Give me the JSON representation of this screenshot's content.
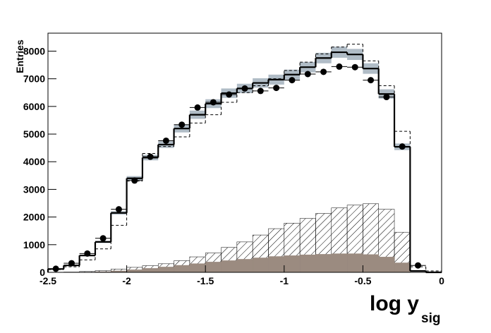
{
  "chart_data": {
    "type": "histogram",
    "y_label": "Entries",
    "x_label": "log y",
    "x_label_sub": "sig",
    "xlim": [
      -2.5,
      0
    ],
    "ylim": [
      0,
      8650
    ],
    "xticks": [
      -2.5,
      -2,
      -1.5,
      -1,
      -0.5,
      0
    ],
    "yticks": [
      0,
      1000,
      2000,
      3000,
      4000,
      5000,
      6000,
      7000,
      8000
    ],
    "bins": [
      -2.5,
      -2.4,
      -2.3,
      -2.2,
      -2.1,
      -2.0,
      -1.9,
      -1.8,
      -1.7,
      -1.6,
      -1.5,
      -1.4,
      -1.3,
      -1.2,
      -1.1,
      -1.0,
      -0.9,
      -0.8,
      -0.7,
      -0.6,
      -0.5,
      -0.4,
      -0.3,
      -0.2,
      -0.1,
      0
    ],
    "histograms": [
      {
        "style": "band",
        "color": "#b0bcc6",
        "values": [
          120,
          250,
          610,
          1100,
          2150,
          3400,
          4150,
          4620,
          5200,
          5700,
          6100,
          6480,
          6650,
          6850,
          6970,
          7150,
          7420,
          7750,
          7960,
          7880,
          7370,
          6450,
          4540,
          50,
          0
        ],
        "errors": [
          0,
          10,
          20,
          40,
          60,
          80,
          100,
          120,
          140,
          150,
          160,
          170,
          170,
          170,
          180,
          180,
          190,
          190,
          200,
          200,
          190,
          170,
          120,
          0,
          0
        ]
      },
      {
        "style": "hatched",
        "color": "#000000",
        "values": [
          0,
          10,
          30,
          60,
          120,
          180,
          240,
          310,
          420,
          560,
          700,
          900,
          1100,
          1350,
          1580,
          1780,
          1950,
          2130,
          2330,
          2430,
          2480,
          2280,
          1450,
          0,
          0
        ]
      },
      {
        "style": "filled",
        "color": "#9b8b80",
        "values": [
          0,
          0,
          10,
          30,
          60,
          100,
          150,
          200,
          260,
          320,
          380,
          430,
          480,
          530,
          580,
          610,
          640,
          660,
          680,
          680,
          650,
          560,
          350,
          0,
          0
        ]
      },
      {
        "style": "step-dashed",
        "color": "#000000",
        "values": [
          100,
          200,
          450,
          850,
          1700,
          3300,
          4300,
          4550,
          4900,
          5400,
          5700,
          6150,
          6500,
          6750,
          7000,
          7300,
          7600,
          7900,
          8150,
          8250,
          7650,
          6750,
          5100,
          200,
          50
        ]
      },
      {
        "style": "step-solid",
        "color": "#000000",
        "values": [
          120,
          250,
          610,
          1100,
          2150,
          3400,
          4150,
          4620,
          5200,
          5700,
          6100,
          6480,
          6650,
          6850,
          6970,
          7150,
          7420,
          7750,
          7960,
          7880,
          7370,
          6450,
          4540,
          50,
          0
        ]
      },
      {
        "style": "points",
        "color": "#000000",
        "values": [
          130,
          330,
          680,
          1230,
          2280,
          3320,
          4180,
          4760,
          5340,
          5960,
          6150,
          6430,
          6650,
          6560,
          6670,
          6950,
          7170,
          7250,
          7440,
          7420,
          6950,
          6340,
          4550,
          250,
          null
        ]
      }
    ]
  }
}
